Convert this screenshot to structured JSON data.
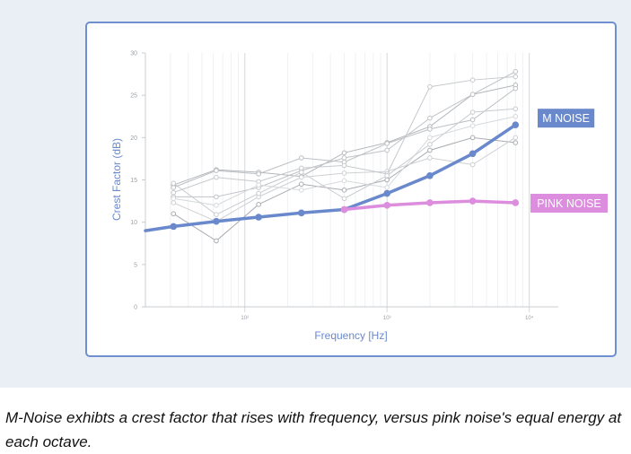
{
  "caption": "M-Noise exhibts a crest factor that rises with frequency, versus pink noise's equal energy at each octave.",
  "colors": {
    "m_noise": "#6a89cc",
    "pink_noise": "#dc8ddd",
    "background_lines": "#b9bcc0",
    "axis_text": "#6a89cc"
  },
  "chart_data": {
    "type": "line",
    "xscale": "log",
    "xlabel": "Frequency [Hz]",
    "ylabel": "Crest Factor (dB)",
    "xlim": [
      20,
      16000
    ],
    "ylim": [
      0,
      30
    ],
    "grid": true,
    "y_ticks": [
      "0",
      "5",
      "10",
      "15",
      "20",
      "25",
      "30"
    ],
    "x_ticks": [
      {
        "value": 100,
        "label": "10²"
      },
      {
        "value": 1000,
        "label": "10³"
      },
      {
        "value": 10000,
        "label": "10⁴"
      }
    ],
    "series": [
      {
        "name": "M NOISE",
        "x": [
          20,
          31.5,
          63,
          125,
          250,
          500,
          1000,
          2000,
          4000,
          8000
        ],
        "y": [
          9.0,
          9.5,
          10.1,
          10.6,
          11.1,
          11.5,
          13.4,
          15.5,
          18.1,
          21.5
        ]
      },
      {
        "name": "PINK NOISE",
        "x": [
          500,
          1000,
          2000,
          4000,
          8000
        ],
        "y": [
          11.5,
          12.0,
          12.3,
          12.5,
          12.3
        ]
      }
    ],
    "background_series": [
      {
        "x": [
          31.5,
          63,
          125,
          250,
          500,
          1000,
          2000,
          4000,
          8000
        ],
        "y": [
          14.4,
          16.2,
          15.9,
          15.4,
          18.2,
          19.4,
          21.3,
          25.1,
          26.2
        ]
      },
      {
        "x": [
          31.5,
          63,
          125,
          250,
          500,
          1000,
          2000,
          4000,
          8000
        ],
        "y": [
          13.0,
          13.0,
          14.1,
          16.1,
          17.6,
          18.5,
          22.3,
          25.1,
          27.8
        ]
      },
      {
        "x": [
          31.5,
          63,
          125,
          250,
          500,
          1000,
          2000,
          4000,
          8000
        ],
        "y": [
          11.0,
          7.8,
          12.1,
          14.5,
          13.8,
          15.0,
          18.5,
          20.0,
          19.4
        ]
      },
      {
        "x": [
          31.5,
          63,
          125,
          250,
          500,
          1000,
          2000,
          4000,
          8000
        ],
        "y": [
          12.3,
          10.1,
          13.0,
          15.3,
          15.8,
          16.0,
          17.6,
          16.8,
          20.0
        ]
      },
      {
        "x": [
          31.5,
          63,
          125,
          250,
          500,
          1000,
          2000,
          4000,
          8000
        ],
        "y": [
          14.1,
          16.1,
          15.7,
          17.6,
          17.1,
          19.3,
          21.0,
          22.1,
          25.8
        ]
      },
      {
        "x": [
          31.5,
          63,
          125,
          250,
          500,
          1000,
          2000,
          4000,
          8000
        ],
        "y": [
          13.5,
          15.3,
          14.8,
          16.4,
          16.7,
          15.7,
          26.0,
          26.8,
          27.2
        ]
      },
      {
        "x": [
          31.5,
          63,
          125,
          250,
          500,
          1000,
          2000,
          4000,
          8000
        ],
        "y": [
          12.8,
          12.0,
          14.4,
          13.8,
          14.9,
          14.1,
          20.0,
          21.4,
          22.5
        ]
      },
      {
        "x": [
          31.5,
          63,
          125,
          250,
          500,
          1000,
          2000,
          4000,
          8000
        ],
        "y": [
          14.6,
          10.9,
          13.4,
          15.9,
          12.8,
          15.5,
          19.2,
          23.0,
          23.4
        ]
      }
    ]
  }
}
